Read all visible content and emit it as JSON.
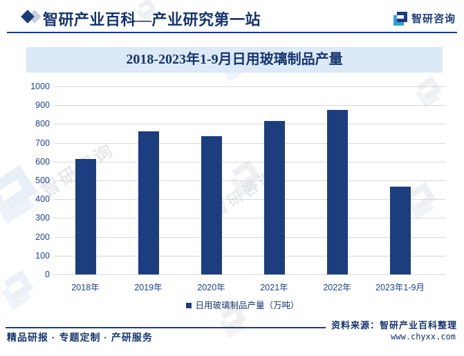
{
  "header": {
    "title": "智研产业百科—产业研究第一站",
    "brand": "智研咨询"
  },
  "chart_data": {
    "type": "bar",
    "title": "2018-2023年1-9月日用玻璃制品产量",
    "categories": [
      "2018年",
      "2019年",
      "2020年",
      "2021年",
      "2022年",
      "2023年1-9月"
    ],
    "values": [
      615,
      760,
      735,
      818,
      875,
      467
    ],
    "xlabel": "",
    "ylabel": "",
    "ylim": [
      0,
      1000
    ],
    "ytick_step": 100,
    "grid": true,
    "legend": [
      "日用玻璃制品产量（万吨）"
    ],
    "legend_position": "bottom",
    "bar_color": "#1c3d7e"
  },
  "footer": {
    "left": "精品研报 · 专题定制 · 产研服务",
    "source": "资料来源：智研产业百科整理",
    "url": "www.chyxx.com"
  },
  "watermark": {
    "text": "智研咨询"
  },
  "colors": {
    "navy": "#15356e",
    "bar": "#1c3d7e",
    "banner_bg": "#dce9f7",
    "gridline": "#d9d9d9",
    "tick_label": "#1e4190",
    "logo_teal": "#2f9fd6"
  }
}
